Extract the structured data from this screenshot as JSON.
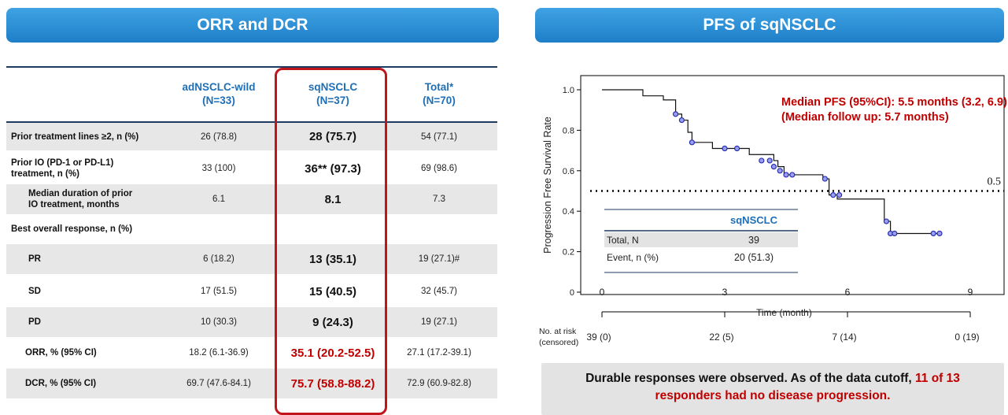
{
  "banners": {
    "left": "ORR and DCR",
    "right": "PFS of sqNSCLC"
  },
  "table": {
    "headers": [
      [
        "adNSCLC-wild",
        "(N=33)"
      ],
      [
        "sqNSCLC",
        "(N=37)"
      ],
      [
        "Total*",
        "(N=70)"
      ]
    ],
    "rows": [
      {
        "label": "Prior treatment lines ≥2, n (%)",
        "v": [
          "26 (78.8)",
          "28 (75.7)",
          "54 (77.1)"
        ]
      },
      {
        "label": "Prior IO (PD-1 or PD-L1)\ntreatment, n (%)",
        "v": [
          "33 (100)",
          "36** (97.3)",
          "69 (98.6)"
        ]
      },
      {
        "label": "Median duration of prior\nIO treatment, months",
        "v": [
          "6.1",
          "8.1",
          "7.3"
        ]
      },
      {
        "label": "Best overall response, n (%)",
        "v": [
          "",
          "",
          ""
        ]
      },
      {
        "label": "PR",
        "v": [
          "6 (18.2)",
          "13 (35.1)",
          "19 (27.1)#"
        ]
      },
      {
        "label": "SD",
        "v": [
          "17 (51.5)",
          "15 (40.5)",
          "32 (45.7)"
        ]
      },
      {
        "label": "PD",
        "v": [
          "10 (30.3)",
          "9 (24.3)",
          "19 (27.1)"
        ]
      },
      {
        "label": "ORR, % (95% CI)",
        "v": [
          "18.2 (6.1-36.9)",
          "35.1 (20.2-52.5)",
          "27.1 (17.2-39.1)"
        ]
      },
      {
        "label": "DCR, % (95% CI)",
        "v": [
          "69.7 (47.6-84.1)",
          "75.7 (58.8-88.2)",
          "72.9 (60.9-82.8)"
        ]
      }
    ]
  },
  "chart_data": {
    "type": "line",
    "ylabel": "Progression Free Survival Rate",
    "xlabel": "Time (month)",
    "ylim": [
      0,
      1.0
    ],
    "xlim": [
      0,
      9
    ],
    "yticks": [
      "0",
      "0.2",
      "0.4",
      "0.6",
      "0.8",
      "1.0"
    ],
    "xticks": [
      "0",
      "3",
      "6",
      "9"
    ],
    "reference_line": {
      "y": 0.5,
      "label": "0.5"
    },
    "annotation": [
      "Median PFS (95%CI): 5.5 months (3.2, 6.9)",
      "(Median follow up: 5.7 months)"
    ],
    "series": [
      {
        "name": "sqNSCLC",
        "steps": [
          [
            0,
            1.0
          ],
          [
            1.0,
            0.97
          ],
          [
            1.5,
            0.95
          ],
          [
            1.8,
            0.88
          ],
          [
            1.95,
            0.85
          ],
          [
            2.1,
            0.79
          ],
          [
            2.2,
            0.74
          ],
          [
            2.7,
            0.71
          ],
          [
            3.6,
            0.68
          ],
          [
            4.2,
            0.65
          ],
          [
            4.3,
            0.62
          ],
          [
            4.45,
            0.58
          ],
          [
            5.4,
            0.56
          ],
          [
            5.55,
            0.48
          ],
          [
            5.75,
            0.46
          ],
          [
            6.9,
            0.35
          ],
          [
            7.05,
            0.29
          ],
          [
            8.3,
            0.29
          ]
        ],
        "censored": [
          [
            1.8,
            0.88
          ],
          [
            1.95,
            0.85
          ],
          [
            2.2,
            0.74
          ],
          [
            3.0,
            0.71
          ],
          [
            3.3,
            0.71
          ],
          [
            3.9,
            0.65
          ],
          [
            4.1,
            0.65
          ],
          [
            4.2,
            0.62
          ],
          [
            4.35,
            0.6
          ],
          [
            4.5,
            0.58
          ],
          [
            4.65,
            0.58
          ],
          [
            5.45,
            0.56
          ],
          [
            5.65,
            0.48
          ],
          [
            5.8,
            0.48
          ],
          [
            6.95,
            0.35
          ],
          [
            7.05,
            0.29
          ],
          [
            7.15,
            0.29
          ],
          [
            8.1,
            0.29
          ],
          [
            8.25,
            0.29
          ]
        ]
      }
    ],
    "inset": {
      "title": "sqNSCLC",
      "rows": [
        [
          "Total, N",
          "39"
        ],
        [
          "Event, n (%)",
          "20 (51.3)"
        ]
      ]
    },
    "at_risk": {
      "label": [
        "No. at risk",
        "(censored)"
      ],
      "values": [
        "39 (0)",
        "22 (5)",
        "7 (14)",
        "0 (19)"
      ]
    }
  },
  "note": {
    "text1": "Durable responses were observed. As of the data cutoff, ",
    "text2": "11 of 13",
    "text3": "responders had no disease progression."
  }
}
